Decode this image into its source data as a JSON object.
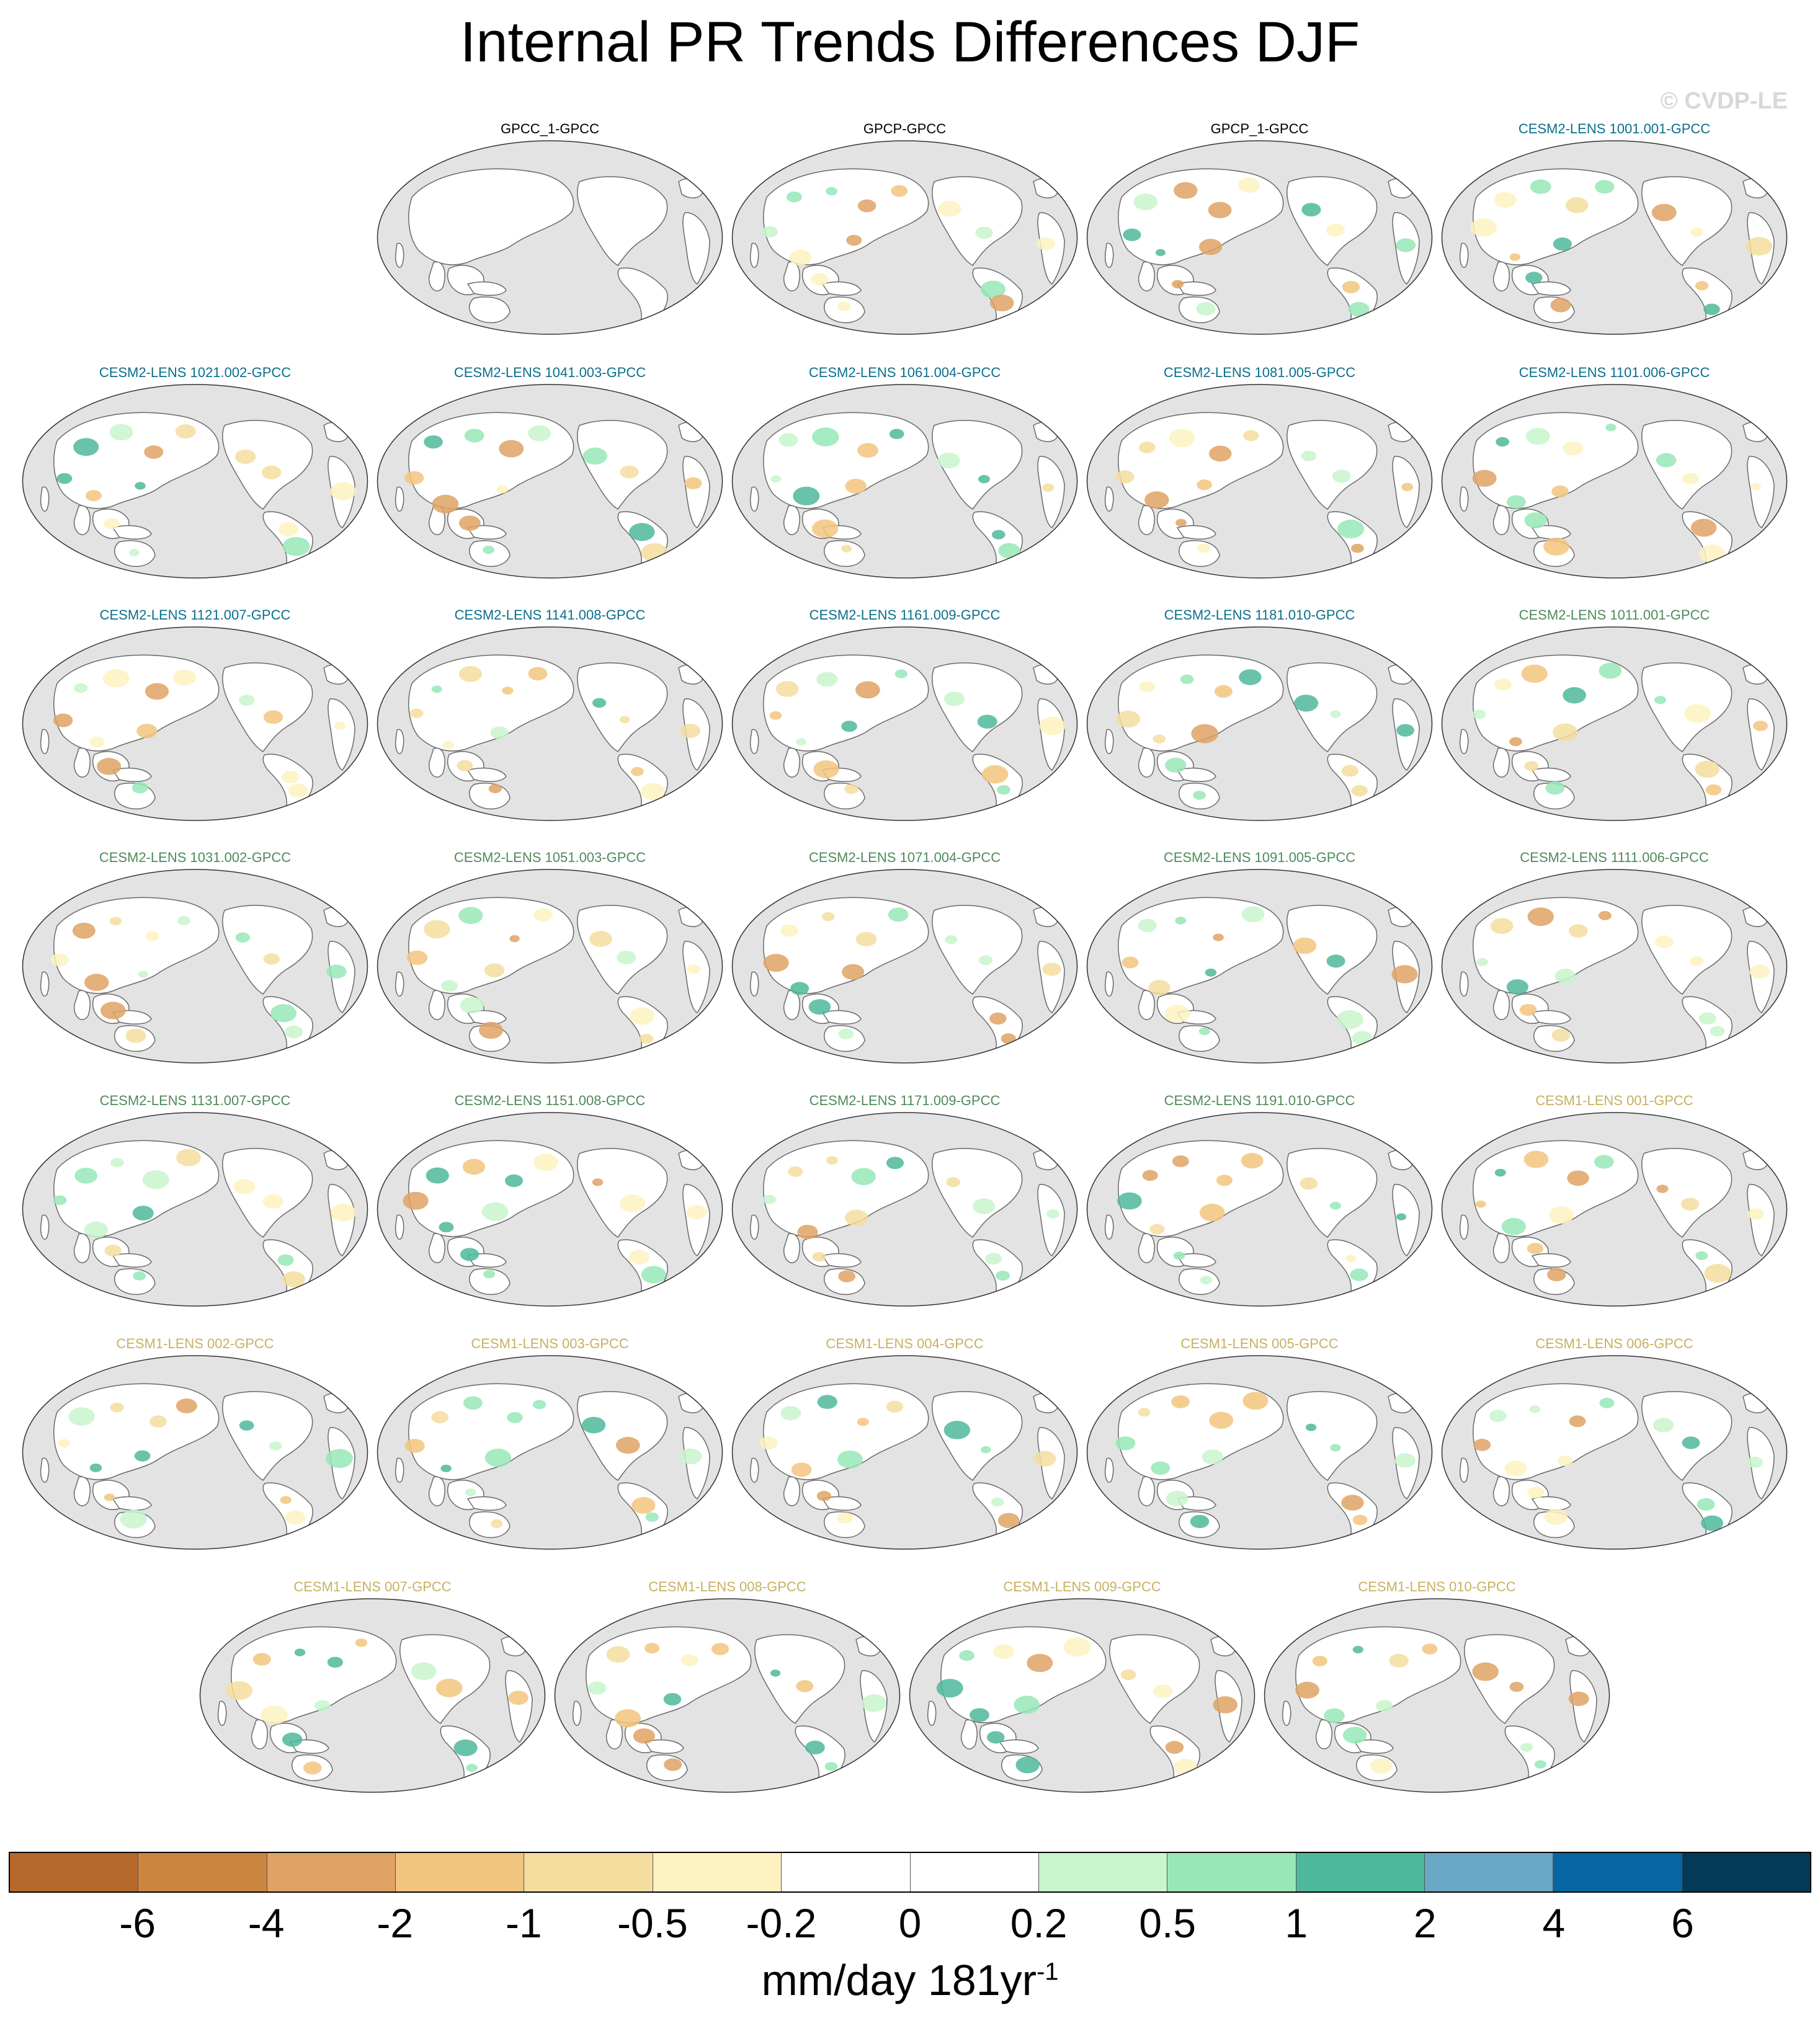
{
  "title": "Internal PR Trends Differences DJF",
  "watermark": "© CVDP-LE",
  "colors": {
    "obs_title": "#000000",
    "cesm2_1001_title": "#0b6e8a",
    "cesm2_1011_title": "#4f8a5a",
    "cesm1_title": "#c8b060",
    "ocean": "#e3e3e3",
    "land": "#ffffff",
    "coast": "#6a6a6a"
  },
  "panels": [
    {
      "label": "GPCC_1-GPCC",
      "group": "obs"
    },
    {
      "label": "GPCP-GPCC",
      "group": "obs"
    },
    {
      "label": "GPCP_1-GPCC",
      "group": "obs"
    },
    {
      "label": "CESM2-LENS 1001.001-GPCC",
      "group": "cesm2a"
    },
    {
      "label": "CESM2-LENS 1021.002-GPCC",
      "group": "cesm2a"
    },
    {
      "label": "CESM2-LENS 1041.003-GPCC",
      "group": "cesm2a"
    },
    {
      "label": "CESM2-LENS 1061.004-GPCC",
      "group": "cesm2a"
    },
    {
      "label": "CESM2-LENS 1081.005-GPCC",
      "group": "cesm2a"
    },
    {
      "label": "CESM2-LENS 1101.006-GPCC",
      "group": "cesm2a"
    },
    {
      "label": "CESM2-LENS 1121.007-GPCC",
      "group": "cesm2a"
    },
    {
      "label": "CESM2-LENS 1141.008-GPCC",
      "group": "cesm2a"
    },
    {
      "label": "CESM2-LENS 1161.009-GPCC",
      "group": "cesm2a"
    },
    {
      "label": "CESM2-LENS 1181.010-GPCC",
      "group": "cesm2a"
    },
    {
      "label": "CESM2-LENS 1011.001-GPCC",
      "group": "cesm2b"
    },
    {
      "label": "CESM2-LENS 1031.002-GPCC",
      "group": "cesm2b"
    },
    {
      "label": "CESM2-LENS 1051.003-GPCC",
      "group": "cesm2b"
    },
    {
      "label": "CESM2-LENS 1071.004-GPCC",
      "group": "cesm2b"
    },
    {
      "label": "CESM2-LENS 1091.005-GPCC",
      "group": "cesm2b"
    },
    {
      "label": "CESM2-LENS 1111.006-GPCC",
      "group": "cesm2b"
    },
    {
      "label": "CESM2-LENS 1131.007-GPCC",
      "group": "cesm2b"
    },
    {
      "label": "CESM2-LENS 1151.008-GPCC",
      "group": "cesm2b"
    },
    {
      "label": "CESM2-LENS 1171.009-GPCC",
      "group": "cesm2b"
    },
    {
      "label": "CESM2-LENS 1191.010-GPCC",
      "group": "cesm2b"
    },
    {
      "label": "CESM1-LENS 001-GPCC",
      "group": "cesm1"
    },
    {
      "label": "CESM1-LENS 002-GPCC",
      "group": "cesm1"
    },
    {
      "label": "CESM1-LENS 003-GPCC",
      "group": "cesm1"
    },
    {
      "label": "CESM1-LENS 004-GPCC",
      "group": "cesm1"
    },
    {
      "label": "CESM1-LENS 005-GPCC",
      "group": "cesm1"
    },
    {
      "label": "CESM1-LENS 006-GPCC",
      "group": "cesm1"
    },
    {
      "label": "CESM1-LENS 007-GPCC",
      "group": "cesm1"
    },
    {
      "label": "CESM1-LENS 008-GPCC",
      "group": "cesm1"
    },
    {
      "label": "CESM1-LENS 009-GPCC",
      "group": "cesm1"
    },
    {
      "label": "CESM1-LENS 010-GPCC",
      "group": "cesm1"
    }
  ],
  "colorbar": {
    "colors": [
      "#b5692b",
      "#cb853f",
      "#dfa264",
      "#f2c57e",
      "#f5dd9f",
      "#fdf2c0",
      "#ffffff",
      "#ffffff",
      "#c8f5cc",
      "#97e8b6",
      "#4db89b",
      "#6aa6c6",
      "#0566a2",
      "#023a57"
    ],
    "labels": [
      "-6",
      "-4",
      "-2",
      "-1",
      "-0.5",
      "-0.2",
      "0",
      "0.2",
      "0.5",
      "1",
      "2",
      "4",
      "6"
    ],
    "units": "mm/day 181yr",
    "units_exponent": "-1"
  }
}
